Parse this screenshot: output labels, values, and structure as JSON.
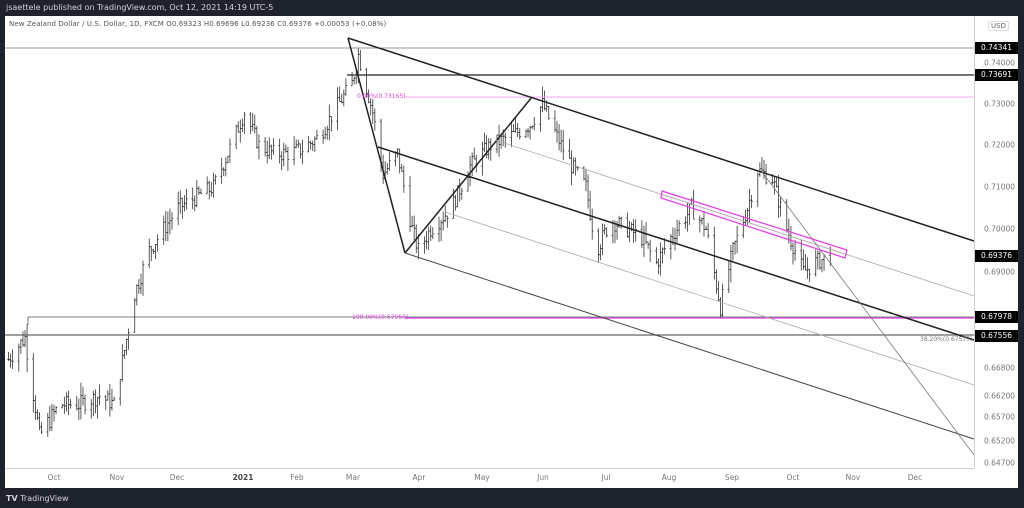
{
  "header": {
    "published": "jsaettele published on TradingView.com, Oct 12, 2021 14:19 UTC-5"
  },
  "legend": {
    "text": "New Zealand Dollar / U.S. Dollar, 1D, FXCM  O0.69323  H0.69696  L0.69236  C0.69376  +0.00053 (+0.08%)"
  },
  "price_axis": {
    "currency": "USD",
    "ticks": [
      "0.74000",
      "0.73000",
      "0.72000",
      "0.71000",
      "0.70000",
      "0.69000",
      "0.66800",
      "0.66200",
      "0.65700",
      "0.65200",
      "0.64700"
    ],
    "tags": [
      "0.74341",
      "0.73691",
      "0.69376",
      "0.67978",
      "0.67556"
    ]
  },
  "time_axis": {
    "labels": [
      "Oct",
      "Nov",
      "Dec",
      "2021",
      "Feb",
      "Mar",
      "Apr",
      "May",
      "Jun",
      "Jul",
      "Aug",
      "Sep",
      "Oct",
      "Nov",
      "Dec"
    ]
  },
  "annotations": {
    "fib_top": "0.00%(0.73165)",
    "fib_bottom": "100.00%(0.67950)",
    "fib_382": "38.20%(0.67577)"
  },
  "colors": {
    "accent": "#e040e0",
    "background": "#1e222d",
    "tag": "#000000"
  },
  "footer": {
    "brand": "TradingView"
  },
  "price_path": [
    [
      "2020-09-09",
      0.67
    ],
    [
      "2020-09-17",
      0.675
    ],
    [
      "2020-09-24",
      0.653
    ],
    [
      "2020-10-04",
      0.66
    ],
    [
      "2020-10-13",
      0.66
    ],
    [
      "2020-10-23",
      0.662
    ],
    [
      "2020-10-30",
      0.66
    ],
    [
      "2020-11-04",
      0.672
    ],
    [
      "2020-11-09",
      0.685
    ],
    [
      "2020-11-16",
      0.695
    ],
    [
      "2020-11-23",
      0.7
    ],
    [
      "2020-11-30",
      0.705
    ],
    [
      "2020-12-10",
      0.708
    ],
    [
      "2020-12-17",
      0.71
    ],
    [
      "2020-12-24",
      0.718
    ],
    [
      "2021-01-01",
      0.728
    ],
    [
      "2021-01-08",
      0.72
    ],
    [
      "2021-01-15",
      0.718
    ],
    [
      "2021-01-22",
      0.718
    ],
    [
      "2021-01-29",
      0.719
    ],
    [
      "2021-02-06",
      0.722
    ],
    [
      "2021-02-13",
      0.728
    ],
    [
      "2021-02-22",
      0.735
    ],
    [
      "2021-02-25",
      0.742
    ],
    [
      "2021-03-04",
      0.728
    ],
    [
      "2021-03-09",
      0.713
    ],
    [
      "2021-03-16",
      0.718
    ],
    [
      "2021-03-23",
      0.7
    ],
    [
      "2021-03-26",
      0.695
    ],
    [
      "2021-04-01",
      0.7
    ],
    [
      "2021-04-11",
      0.705
    ],
    [
      "2021-04-20",
      0.715
    ],
    [
      "2021-04-30",
      0.72
    ],
    [
      "2021-05-09",
      0.722
    ],
    [
      "2021-05-19",
      0.725
    ],
    [
      "2021-05-25",
      0.73
    ],
    [
      "2021-06-01",
      0.722
    ],
    [
      "2021-06-08",
      0.715
    ],
    [
      "2021-06-15",
      0.71
    ],
    [
      "2021-06-20",
      0.695
    ],
    [
      "2021-06-27",
      0.702
    ],
    [
      "2021-07-05",
      0.7
    ],
    [
      "2021-07-12",
      0.698
    ],
    [
      "2021-07-19",
      0.692
    ],
    [
      "2021-07-26",
      0.698
    ],
    [
      "2021-08-05",
      0.705
    ],
    [
      "2021-08-12",
      0.7
    ],
    [
      "2021-08-19",
      0.682
    ],
    [
      "2021-08-25",
      0.695
    ],
    [
      "2021-09-01",
      0.705
    ],
    [
      "2021-09-06",
      0.714
    ],
    [
      "2021-09-13",
      0.712
    ],
    [
      "2021-09-20",
      0.7
    ],
    [
      "2021-09-28",
      0.69
    ],
    [
      "2021-10-03",
      0.692
    ],
    [
      "2021-10-11",
      0.6938
    ]
  ]
}
